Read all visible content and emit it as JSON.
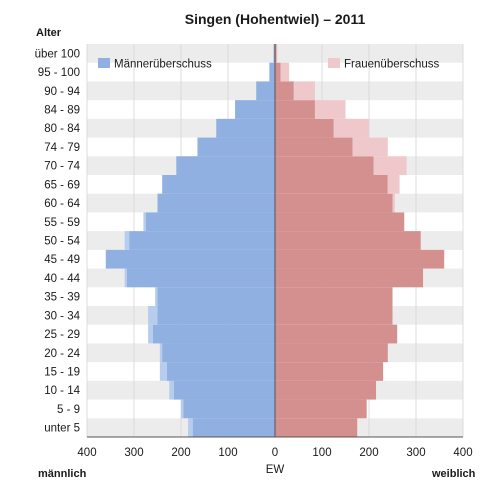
{
  "chart_data": {
    "type": "bar",
    "orientation": "horizontal",
    "title": "Singen (Hohentwiel) – 2011",
    "y_axis_title": "Alter",
    "x_axis_title": "EW",
    "left_label": "männlich",
    "right_label": "weiblich",
    "xlim": [
      -400,
      400
    ],
    "x_ticks": [
      400,
      300,
      200,
      100,
      0,
      100,
      200,
      300,
      400
    ],
    "age_labels": [
      "über 100",
      "95 - 100",
      "90 - 94",
      "84 - 89",
      "80 - 84",
      "74 - 79",
      "70 - 74",
      "65 - 69",
      "60 - 64",
      "55 - 59",
      "50 - 54",
      "45 - 49",
      "40 - 44",
      "35 - 39",
      "30 - 34",
      "25 - 29",
      "20 - 24",
      "15 - 19",
      "10 - 14",
      "5 - 9",
      "unter 5"
    ],
    "legend": {
      "men_surplus": "Männerüberschuss",
      "women_surplus": "Frauenüberschuss",
      "placement_men": "top-left",
      "placement_women": "top-right"
    },
    "series": [
      {
        "name": "männlich",
        "age_groups": [
          "unter 5",
          "5 - 9",
          "10 - 14",
          "15 - 19",
          "20 - 24",
          "25 - 29",
          "30 - 34",
          "35 - 39",
          "40 - 44",
          "45 - 49",
          "50 - 54",
          "55 - 59",
          "60 - 64",
          "65 - 69",
          "70 - 74",
          "74 - 79",
          "80 - 84",
          "84 - 89",
          "90 - 94",
          "95 - 100",
          "über 100"
        ],
        "values": [
          185,
          200,
          225,
          245,
          245,
          270,
          270,
          255,
          320,
          360,
          320,
          280,
          250,
          240,
          210,
          165,
          125,
          85,
          40,
          12,
          3
        ]
      },
      {
        "name": "weiblich",
        "age_groups": [
          "unter 5",
          "5 - 9",
          "10 - 14",
          "15 - 19",
          "20 - 24",
          "25 - 29",
          "30 - 34",
          "35 - 39",
          "40 - 44",
          "45 - 49",
          "50 - 54",
          "55 - 59",
          "60 - 64",
          "65 - 69",
          "70 - 74",
          "74 - 79",
          "80 - 84",
          "84 - 89",
          "90 - 94",
          "95 - 100",
          "über 100"
        ],
        "values": [
          175,
          195,
          215,
          230,
          240,
          260,
          250,
          250,
          315,
          360,
          310,
          275,
          255,
          265,
          280,
          240,
          200,
          150,
          85,
          30,
          5
        ]
      }
    ],
    "colors": {
      "men": "#8fb0e0",
      "men_surplus": "#b7cdee",
      "women": "#d48f8f",
      "women_surplus": "#efc8cb",
      "band": "#ececec",
      "grid": "#d6d6d6"
    }
  }
}
